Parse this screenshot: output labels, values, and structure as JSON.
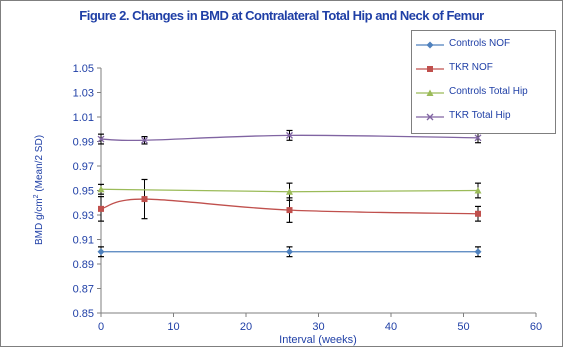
{
  "chart_data": {
    "type": "line",
    "title": "Figure 2. Changes in BMD at Contralateral Total Hip and Neck of Femur",
    "xlabel": "Interval (weeks)",
    "ylabel_main": "BMD g/cm",
    "ylabel_sup": "2",
    "ylabel_tail": " (Mean/2 SD)",
    "xlim": [
      0,
      60
    ],
    "ylim": [
      0.85,
      1.05
    ],
    "xticks": [
      "0",
      "10",
      "20",
      "30",
      "40",
      "50",
      "60"
    ],
    "yticks": [
      "0.85",
      "0.87",
      "0.89",
      "0.91",
      "0.93",
      "0.95",
      "0.97",
      "0.99",
      "1.01",
      "1.03",
      "1.05"
    ],
    "grid": false,
    "legend_position": "top-right",
    "series": [
      {
        "name": "Controls NOF",
        "color": "#4f81bd",
        "marker": "diamond",
        "smooth": false,
        "x": [
          0,
          26,
          52
        ],
        "y": [
          0.9,
          0.9,
          0.9
        ],
        "err": [
          0.004,
          0.004,
          0.004
        ]
      },
      {
        "name": "TKR NOF",
        "color": "#c0504d",
        "marker": "square",
        "smooth": true,
        "x": [
          0,
          6,
          26,
          52
        ],
        "y": [
          0.935,
          0.943,
          0.934,
          0.931
        ],
        "err": [
          0.01,
          0.016,
          0.01,
          0.006
        ]
      },
      {
        "name": "Controls Total Hip",
        "color": "#9bbb59",
        "marker": "triangle",
        "smooth": false,
        "x": [
          0,
          26,
          52
        ],
        "y": [
          0.951,
          0.949,
          0.95
        ],
        "err": [
          0.004,
          0.007,
          0.006
        ]
      },
      {
        "name": "TKR Total Hip",
        "color": "#8064a2",
        "marker": "x",
        "smooth": true,
        "x": [
          0,
          6,
          26,
          52
        ],
        "y": [
          0.992,
          0.991,
          0.995,
          0.993
        ],
        "err": [
          0.004,
          0.003,
          0.004,
          0.004
        ]
      }
    ]
  }
}
